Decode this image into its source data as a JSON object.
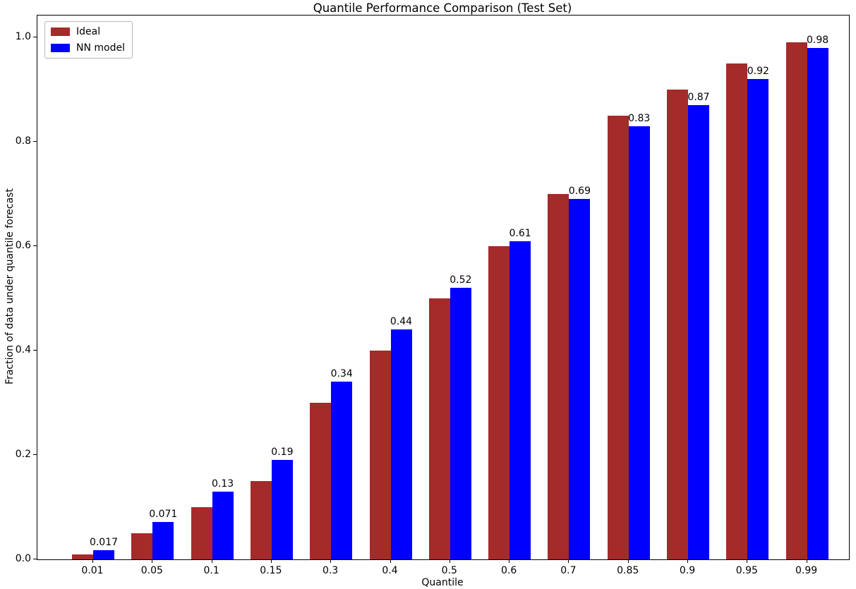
{
  "chart_data": {
    "type": "bar",
    "title": "Quantile Performance Comparison (Test Set)",
    "xlabel": "Quantile",
    "ylabel": "Fraction of data under quantile forecast",
    "categories": [
      "0.01",
      "0.05",
      "0.1",
      "0.15",
      "0.3",
      "0.4",
      "0.5",
      "0.6",
      "0.7",
      "0.85",
      "0.9",
      "0.95",
      "0.99"
    ],
    "series": [
      {
        "name": "Ideal",
        "color": "#A52A2A",
        "values": [
          0.01,
          0.05,
          0.1,
          0.15,
          0.3,
          0.4,
          0.5,
          0.6,
          0.7,
          0.85,
          0.9,
          0.95,
          0.99
        ]
      },
      {
        "name": "NN model",
        "color": "#0000FF",
        "values": [
          0.017,
          0.071,
          0.13,
          0.19,
          0.34,
          0.44,
          0.52,
          0.61,
          0.69,
          0.83,
          0.87,
          0.92,
          0.98
        ]
      }
    ],
    "bar_labels": [
      "0.017",
      "0.071",
      "0.13",
      "0.19",
      "0.34",
      "0.44",
      "0.52",
      "0.61",
      "0.69",
      "0.83",
      "0.87",
      "0.92",
      "0.98"
    ],
    "bar_label_series": "NN model",
    "y_ticks": [
      "0.0",
      "0.2",
      "0.4",
      "0.6",
      "0.8",
      "1.0"
    ],
    "ylim": [
      0,
      1.042
    ],
    "grid": false,
    "legend_position": "upper left"
  }
}
